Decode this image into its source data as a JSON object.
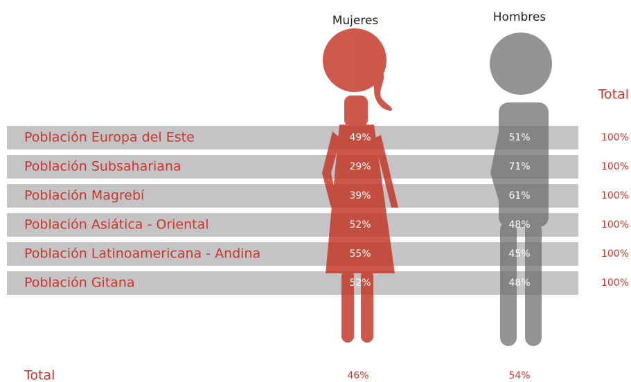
{
  "header": {
    "women": "Mujeres",
    "men": "Hombres",
    "total": "Total"
  },
  "rows": [
    {
      "label": "Población Europa del Este",
      "women": "49%",
      "men": "51%",
      "total": "100%"
    },
    {
      "label": "Población Subsahariana",
      "women": "29%",
      "men": "71%",
      "total": "100%"
    },
    {
      "label": "Población Magrebí",
      "women": "39%",
      "men": "61%",
      "total": "100%"
    },
    {
      "label": "Población Asiática - Oriental",
      "women": "52%",
      "men": "48%",
      "total": "100%"
    },
    {
      "label": "Población Latinoamericana - Andina",
      "women": "55%",
      "men": "45%",
      "total": "100%"
    },
    {
      "label": "Población Gitana",
      "women": "52%",
      "men": "48%",
      "total": "100%"
    }
  ],
  "total_row": {
    "label": "Total",
    "women": "46%",
    "men": "54%"
  }
}
